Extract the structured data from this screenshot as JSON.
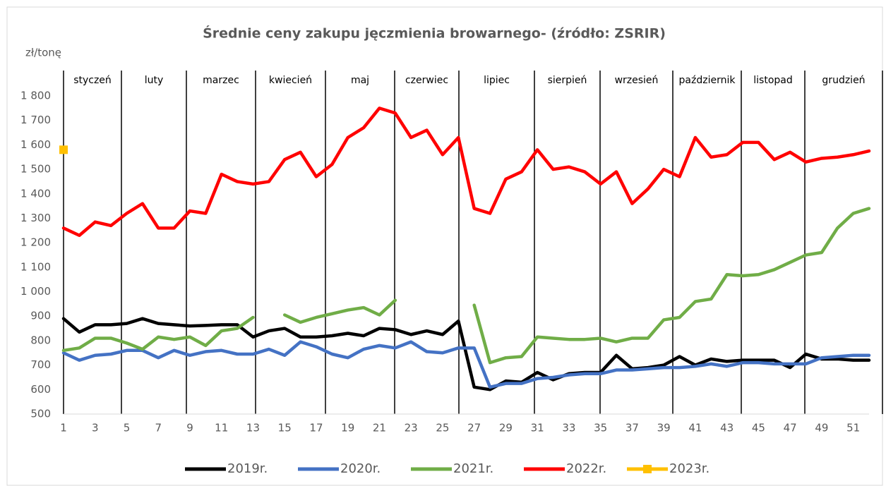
{
  "chart_data": {
    "type": "line",
    "title": "Średnie ceny zakupu jęczmienia browarnego- (źródło: ZSRIR)",
    "y_label": "zł/tonę",
    "months": [
      "styczeń",
      "luty",
      "marzec",
      "kwiecień",
      "maj",
      "czerwiec",
      "lipiec",
      "sierpień",
      "wrzesień",
      "październik",
      "listopad",
      "grudzień"
    ],
    "x": [
      1,
      2,
      3,
      4,
      5,
      6,
      7,
      8,
      9,
      10,
      11,
      12,
      13,
      14,
      15,
      16,
      17,
      18,
      19,
      20,
      21,
      22,
      23,
      24,
      25,
      26,
      27,
      28,
      29,
      30,
      31,
      32,
      33,
      34,
      35,
      36,
      37,
      38,
      39,
      40,
      41,
      42,
      43,
      44,
      45,
      46,
      47,
      48,
      49,
      50,
      51,
      52
    ],
    "xlim": [
      1,
      52
    ],
    "xticks": [
      1,
      3,
      5,
      7,
      9,
      11,
      13,
      15,
      17,
      19,
      21,
      23,
      25,
      27,
      29,
      31,
      33,
      35,
      37,
      39,
      41,
      43,
      45,
      47,
      49,
      51
    ],
    "ylim": [
      500,
      1800
    ],
    "yticks": [
      500,
      600,
      700,
      800,
      900,
      {
        "value": 1000,
        "label": "1 000"
      },
      {
        "value": 1100,
        "label": "1 100"
      },
      {
        "value": 1200,
        "label": "1 200"
      },
      {
        "value": 1300,
        "label": "1 300"
      },
      {
        "value": 1400,
        "label": "1 400"
      },
      {
        "value": 1500,
        "label": "1 500"
      },
      {
        "value": 1600,
        "label": "1 600"
      },
      {
        "value": 1700,
        "label": "1 700"
      },
      {
        "value": 1800,
        "label": "1 800"
      }
    ],
    "grid": false,
    "legend": "bottom",
    "series": [
      {
        "name": "2019r.",
        "color": "#000000",
        "values": [
          890,
          835,
          865,
          865,
          870,
          890,
          870,
          865,
          860,
          862,
          865,
          865,
          815,
          840,
          850,
          815,
          815,
          820,
          830,
          820,
          850,
          845,
          825,
          840,
          825,
          880,
          610,
          600,
          635,
          630,
          670,
          640,
          665,
          670,
          670,
          740,
          685,
          690,
          700,
          735,
          700,
          725,
          715,
          720,
          720,
          720,
          690,
          745,
          725,
          725,
          720,
          720
        ]
      },
      {
        "name": "2020r.",
        "color": "#4472c4",
        "values": [
          750,
          720,
          740,
          745,
          760,
          760,
          730,
          760,
          740,
          755,
          760,
          745,
          745,
          765,
          740,
          795,
          775,
          745,
          730,
          765,
          780,
          770,
          795,
          755,
          750,
          770,
          770,
          610,
          625,
          625,
          645,
          650,
          660,
          665,
          665,
          680,
          680,
          685,
          690,
          690,
          695,
          705,
          695,
          710,
          710,
          705,
          705,
          705,
          730,
          735,
          740,
          740
        ]
      },
      {
        "name": "2021r.",
        "color": "#70ad47",
        "values": [
          760,
          770,
          810,
          810,
          790,
          765,
          815,
          805,
          815,
          780,
          840,
          850,
          895,
          null,
          905,
          875,
          895,
          910,
          925,
          935,
          905,
          965,
          null,
          null,
          null,
          null,
          945,
          710,
          730,
          735,
          815,
          810,
          805,
          805,
          810,
          795,
          810,
          810,
          885,
          895,
          960,
          970,
          1070,
          1065,
          1070,
          1090,
          1120,
          1150,
          1160,
          1260,
          1320,
          1340
        ]
      },
      {
        "name": "2022r.",
        "color": "#ff0000",
        "values": [
          1260,
          1230,
          1285,
          1270,
          1320,
          1360,
          1260,
          1260,
          1330,
          1320,
          1480,
          1450,
          1440,
          1450,
          1540,
          1570,
          1470,
          1520,
          1630,
          1670,
          1750,
          1730,
          1630,
          1660,
          1560,
          1630,
          1340,
          1320,
          1460,
          1490,
          1580,
          1500,
          1510,
          1490,
          1440,
          1490,
          1360,
          1420,
          1500,
          1470,
          1630,
          1550,
          1560,
          1610,
          1610,
          1540,
          1570,
          1530,
          1545,
          1550,
          1560,
          1575
        ]
      },
      {
        "name": "2023r.",
        "color": "#ffc000",
        "values": [
          1580,
          null,
          null,
          null,
          null,
          null,
          null,
          null,
          null,
          null,
          null,
          null,
          null,
          null,
          null,
          null,
          null,
          null,
          null,
          null,
          null,
          null,
          null,
          null,
          null,
          null,
          null,
          null,
          null,
          null,
          null,
          null,
          null,
          null,
          null,
          null,
          null,
          null,
          null,
          null,
          null,
          null,
          null,
          null,
          null,
          null,
          null,
          null,
          null,
          null,
          null,
          null
        ]
      }
    ]
  }
}
